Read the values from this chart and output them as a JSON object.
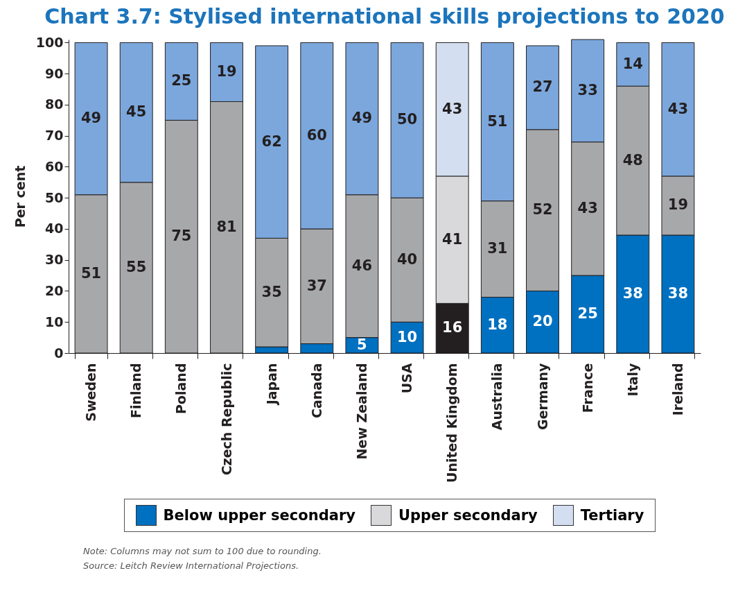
{
  "chart_data": {
    "type": "bar",
    "title": "Chart 3.7: Stylised international skills projections to 2020",
    "ylabel": "Per cent",
    "categories": [
      "Sweden",
      "Finland",
      "Poland",
      "Czech Republic",
      "Japan",
      "Canada",
      "New Zealand",
      "USA",
      "United Kingdom",
      "Australia",
      "Germany",
      "France",
      "Italy",
      "Ireland"
    ],
    "stacked": true,
    "ylim": [
      0,
      101
    ],
    "yticks": [
      0,
      10,
      20,
      30,
      40,
      50,
      60,
      70,
      80,
      90,
      100
    ],
    "grid": false,
    "legend": "bottom",
    "series": [
      {
        "name": "Below upper secondary",
        "color": "#0070c0",
        "colors": [
          "#0070c0",
          "#0070c0",
          "#0070c0",
          "#0070c0",
          "#0070c0",
          "#0070c0",
          "#0070c0",
          "#0070c0",
          "#231f20",
          "#0070c0",
          "#0070c0",
          "#0070c0",
          "#0070c0",
          "#0070c0"
        ],
        "values": [
          0,
          0,
          0,
          0,
          2,
          3,
          5,
          10,
          16,
          18,
          20,
          25,
          38,
          38
        ],
        "value_labels": [
          null,
          null,
          null,
          null,
          null,
          null,
          "5",
          "10",
          "16",
          "18",
          "20",
          "25",
          "38",
          "38"
        ]
      },
      {
        "name": "Upper secondary",
        "color": "#d9d9db",
        "colors": [
          "#a7a8aa",
          "#a7a8aa",
          "#a7a8aa",
          "#a7a8aa",
          "#a7a8aa",
          "#a7a8aa",
          "#a7a8aa",
          "#a7a8aa",
          "#d9d9db",
          "#a7a8aa",
          "#a7a8aa",
          "#a7a8aa",
          "#a7a8aa",
          "#a7a8aa"
        ],
        "values": [
          51,
          55,
          75,
          81,
          35,
          37,
          46,
          40,
          41,
          31,
          52,
          43,
          48,
          19
        ],
        "value_labels": [
          "51",
          "55",
          "75",
          "81",
          "35",
          "37",
          "46",
          "40",
          "41",
          "31",
          "52",
          "43",
          "48",
          "19"
        ]
      },
      {
        "name": "Tertiary",
        "color": "#d3dff0",
        "colors": [
          "#7ba7dc",
          "#7ba7dc",
          "#7ba7dc",
          "#7ba7dc",
          "#7ba7dc",
          "#7ba7dc",
          "#7ba7dc",
          "#7ba7dc",
          "#d3dff0",
          "#7ba7dc",
          "#7ba7dc",
          "#7ba7dc",
          "#7ba7dc",
          "#7ba7dc"
        ],
        "values": [
          49,
          45,
          25,
          19,
          62,
          60,
          49,
          50,
          43,
          51,
          27,
          33,
          14,
          43
        ],
        "value_labels": [
          "49",
          "45",
          "25",
          "19",
          "62",
          "60",
          "49",
          "50",
          "43",
          "51",
          "27",
          "33",
          "14",
          "43"
        ]
      }
    ],
    "annotations": [
      "Note: Columns may not sum to 100 due to rounding.",
      "Source: Leitch Review International Projections."
    ]
  }
}
